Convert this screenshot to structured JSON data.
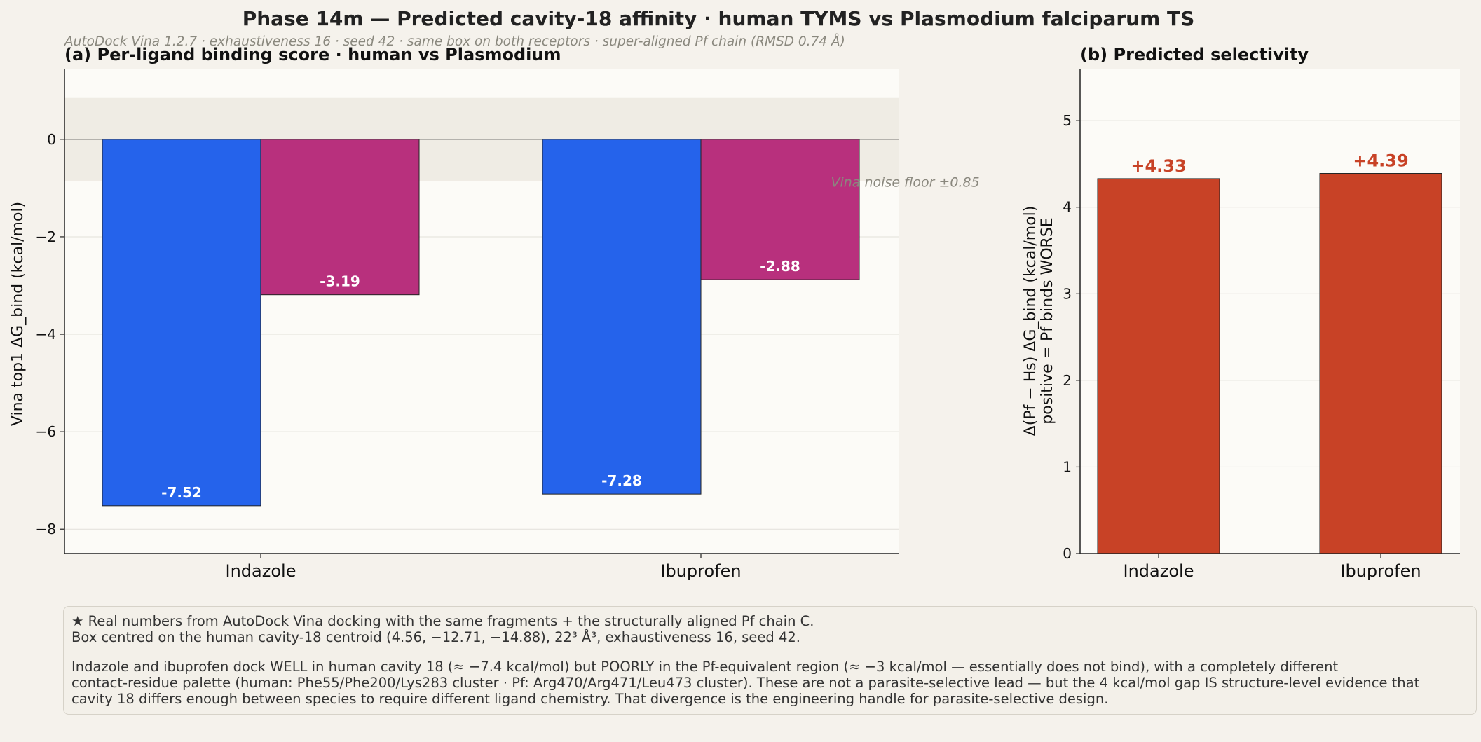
{
  "title": "Phase 14m — Predicted cavity-18 affinity  ·  human TYMS  vs  Plasmodium falciparum TS",
  "subtitle": "AutoDock Vina 1.2.7 · exhaustiveness 16 · seed 42 · same box on both receptors  ·  super-aligned Pf chain (RMSD 0.74 Å)",
  "colors": {
    "page_bg": "#f5f2ec",
    "plot_bg": "#fcfbf7",
    "human": "#2563eb",
    "plasmodium": "#b8307d",
    "selectivity": "#c84226",
    "noise_band": "#efece4",
    "annotation": "#8a887e"
  },
  "chart_data": [
    {
      "id": "a",
      "type": "bar",
      "title": "(a)   Per-ligand binding score  ·  human vs Plasmodium",
      "xlabel": "",
      "ylabel": "Vina top1   ΔG_bind  (kcal/mol)",
      "categories": [
        "Indazole",
        "Ibuprofen"
      ],
      "series": [
        {
          "key": "human",
          "values": [
            -7.52,
            -7.28
          ],
          "labels": [
            "-7.52",
            "-7.28"
          ]
        },
        {
          "key": "plasmodium",
          "values": [
            -3.19,
            -2.88
          ],
          "labels": [
            "-3.19",
            "-2.88"
          ]
        }
      ],
      "ylim": [
        -8.5,
        1.45
      ],
      "yticks": [
        0,
        -2,
        -4,
        -6,
        -8
      ],
      "ytick_labels": [
        "0",
        "−2",
        "−4",
        "−6",
        "−8"
      ],
      "grid": true,
      "noise_band": [
        -0.85,
        0.85
      ],
      "noise_label": "Vina noise floor  ±0.85",
      "noise_label_at": {
        "category_offset": 1.16,
        "y": -0.97
      }
    },
    {
      "id": "b",
      "type": "bar",
      "title": "(b)   Predicted selectivity",
      "xlabel": "",
      "ylabel": "Δ(Pf − Hs)   ΔG_bind   (kcal/mol)",
      "ylabel2": "positive = Pf binds WORSE",
      "categories": [
        "Indazole",
        "Ibuprofen"
      ],
      "values": [
        4.33,
        4.39
      ],
      "labels": [
        "+4.33",
        "+4.39"
      ],
      "ylim": [
        0,
        5.6
      ],
      "yticks": [
        0,
        1,
        2,
        3,
        4,
        5
      ],
      "ytick_labels": [
        "0",
        "1",
        "2",
        "3",
        "4",
        "5"
      ],
      "grid": true
    }
  ],
  "footer": {
    "line1": "★  Real numbers from AutoDock Vina docking with the same fragments + the structurally aligned Pf chain C.",
    "line2": "Box centred on the human cavity-18 centroid (4.56, −12.71, −14.88), 22³ Å³, exhaustiveness 16, seed 42.",
    "para2_line1": "Indazole and ibuprofen dock WELL in human cavity 18 (≈ −7.4 kcal/mol) but POORLY in the Pf-equivalent region (≈ −3 kcal/mol — essentially does not bind), with a completely different",
    "para2_line2": "contact-residue palette (human: Phe55/Phe200/Lys283 cluster · Pf: Arg470/Arg471/Leu473 cluster).  These are not a parasite-selective lead — but the 4 kcal/mol gap IS structure-level evidence that",
    "para2_line3": "cavity 18 differs enough between species to require different ligand chemistry.  That divergence is the engineering handle for parasite-selective design."
  }
}
